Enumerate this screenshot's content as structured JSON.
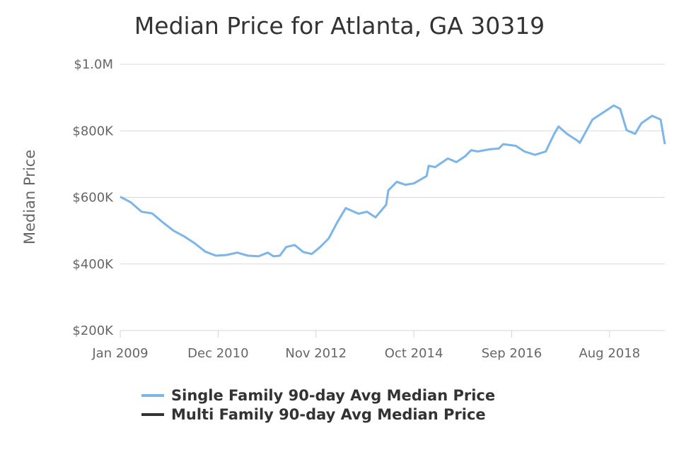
{
  "chart_data": {
    "type": "line",
    "title": "Median Price for Atlanta, GA 30319",
    "xlabel": "",
    "ylabel": "Median Price",
    "x_unit": "months since Jan 2009",
    "xlim": [
      0,
      128
    ],
    "ylim": [
      200000,
      1000000
    ],
    "grid": true,
    "x_ticks": [
      {
        "month": 0,
        "label": "Jan 2009"
      },
      {
        "month": 23,
        "label": "Dec 2010"
      },
      {
        "month": 46,
        "label": "Nov 2012"
      },
      {
        "month": 69,
        "label": "Oct 2014"
      },
      {
        "month": 92,
        "label": "Sep 2016"
      },
      {
        "month": 115,
        "label": "Aug 2018"
      }
    ],
    "y_ticks": [
      {
        "value": 200000,
        "label": "$200K"
      },
      {
        "value": 400000,
        "label": "$400K"
      },
      {
        "value": 600000,
        "label": "$600K"
      },
      {
        "value": 800000,
        "label": "$800K"
      },
      {
        "value": 1000000,
        "label": "$1.0M"
      }
    ],
    "legend_position": "bottom",
    "series": [
      {
        "name": "Single Family 90-day Avg Median Price",
        "color": "#7cb5ec",
        "x": [
          0,
          2.5,
          5,
          7.5,
          10,
          12.5,
          15,
          17.5,
          20,
          22.5,
          25,
          27.5,
          30,
          32.5,
          34.7,
          36,
          37.5,
          39,
          41,
          43,
          45,
          47,
          49,
          51,
          53,
          56,
          58,
          60,
          62.5,
          63,
          65,
          67,
          69,
          72,
          72.5,
          74,
          77,
          79,
          81,
          82.5,
          84,
          87,
          89,
          90,
          93,
          95,
          97.5,
          100,
          102,
          103,
          105,
          107.5,
          108,
          111,
          113,
          116,
          117.5,
          119,
          121,
          122.5,
          125,
          127,
          128
        ],
        "y": [
          602000,
          585000,
          557000,
          552000,
          525000,
          500000,
          483000,
          462000,
          437000,
          425000,
          427000,
          434000,
          425000,
          423000,
          434000,
          423000,
          425000,
          451000,
          457000,
          436000,
          430000,
          451000,
          477000,
          525000,
          568000,
          551000,
          557000,
          540000,
          578000,
          621000,
          647000,
          638000,
          642000,
          664000,
          695000,
          691000,
          717000,
          706000,
          723000,
          742000,
          738000,
          745000,
          747000,
          760000,
          755000,
          738000,
          728000,
          738000,
          791000,
          813000,
          791000,
          770000,
          764000,
          834000,
          851000,
          876000,
          866000,
          802000,
          791000,
          823000,
          845000,
          834000,
          760000
        ]
      },
      {
        "name": "Multi Family 90-day Avg Median Price",
        "color": "#333333",
        "x": [],
        "y": []
      }
    ]
  }
}
